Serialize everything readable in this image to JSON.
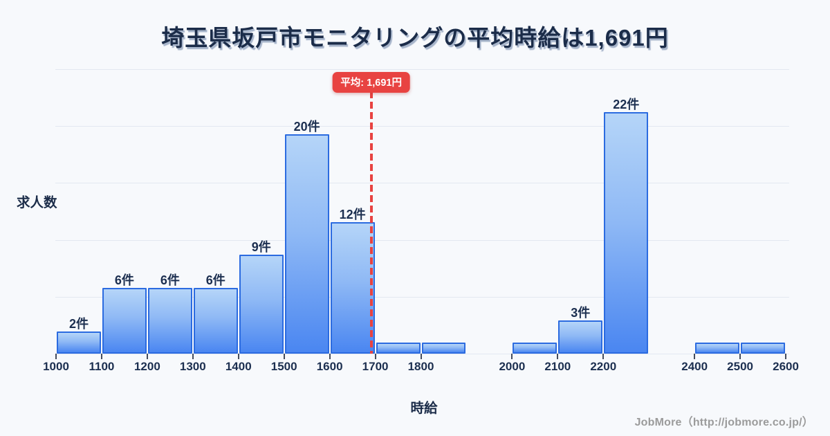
{
  "title": "埼玉県坂戸市モニタリングの平均時給は1,691円",
  "axes": {
    "y_label": "求人数",
    "x_label": "時給"
  },
  "footer": "JobMore（http://jobmore.co.jp/）",
  "colors": {
    "background": "#f7f9fc",
    "title_text": "#1b2c49",
    "bar_border": "#2b6be0",
    "bar_gradient_top": "#b5d5f8",
    "bar_gradient_bottom": "#4a86f1",
    "gridline": "#e3e8f1",
    "average_accent": "#e84341",
    "footer_text": "#9b9b9b"
  },
  "chart_data": {
    "type": "bar",
    "title": "埼玉県坂戸市モニタリングの平均時給は1,691円",
    "xlabel": "時給",
    "ylabel": "求人数",
    "grid": true,
    "legend": "none",
    "x_range": [
      1000,
      2600
    ],
    "ylim": [
      0,
      26
    ],
    "bin_width": 100,
    "x_tick_labels": [
      "1000",
      "1100",
      "1200",
      "1300",
      "1400",
      "1500",
      "1600",
      "1700",
      "1800",
      "2000",
      "2100",
      "2200",
      "2400",
      "2500",
      "2600"
    ],
    "bars": [
      {
        "bin_start": 1000,
        "count": 2,
        "label": "2件"
      },
      {
        "bin_start": 1100,
        "count": 6,
        "label": "6件"
      },
      {
        "bin_start": 1200,
        "count": 6,
        "label": "6件"
      },
      {
        "bin_start": 1300,
        "count": 6,
        "label": "6件"
      },
      {
        "bin_start": 1400,
        "count": 9,
        "label": "9件"
      },
      {
        "bin_start": 1500,
        "count": 20,
        "label": "20件"
      },
      {
        "bin_start": 1600,
        "count": 12,
        "label": "12件"
      },
      {
        "bin_start": 1700,
        "count": 1
      },
      {
        "bin_start": 1800,
        "count": 1
      },
      {
        "bin_start": 2000,
        "count": 1
      },
      {
        "bin_start": 2100,
        "count": 3,
        "label": "3件"
      },
      {
        "bin_start": 2200,
        "count": 22,
        "label": "22件"
      },
      {
        "bin_start": 2400,
        "count": 1
      },
      {
        "bin_start": 2500,
        "count": 1
      }
    ],
    "average_line": {
      "value": 1691,
      "label": "平均: 1,691円"
    }
  }
}
